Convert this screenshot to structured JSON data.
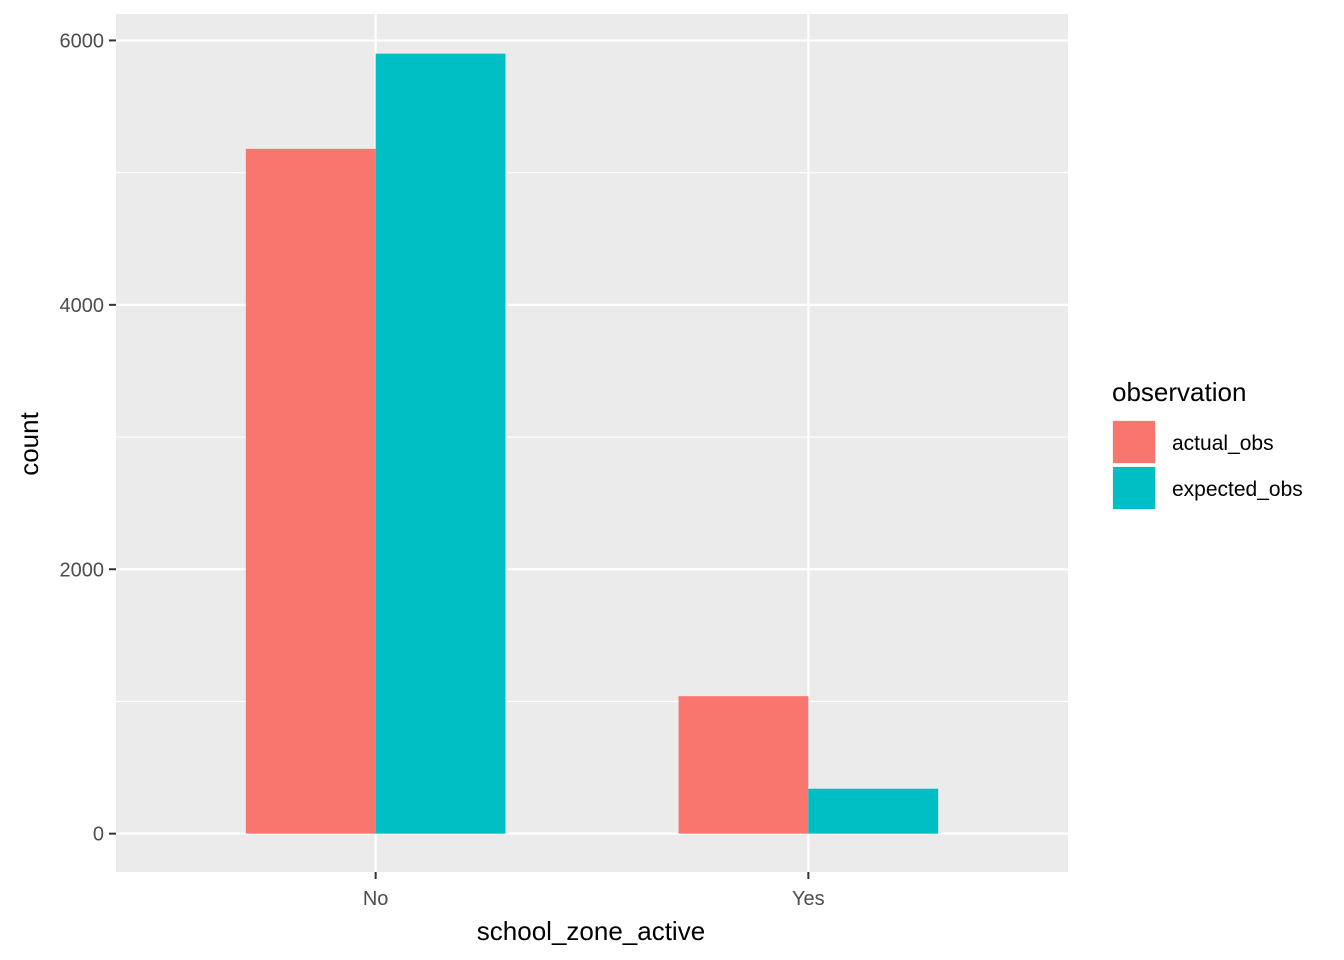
{
  "chart_data": {
    "type": "bar",
    "title": "",
    "xlabel": "school_zone_active",
    "ylabel": "count",
    "categories": [
      "No",
      "Yes"
    ],
    "series": [
      {
        "name": "actual_obs",
        "values": [
          5180,
          1040
        ]
      },
      {
        "name": "expected_obs",
        "values": [
          5900,
          340
        ]
      }
    ],
    "ylim": [
      -290,
      6200
    ],
    "yticks": [
      0,
      2000,
      4000,
      6000
    ],
    "ytick_labels": [
      "0",
      "2000",
      "4000",
      "6000"
    ],
    "grid": true,
    "legend": {
      "title": "observation",
      "placement": "right"
    },
    "colors": {
      "actual_obs": "#F8766D",
      "expected_obs": "#00BFC4",
      "panel_background": "#EBEBEB",
      "grid": "#FFFFFF"
    }
  }
}
